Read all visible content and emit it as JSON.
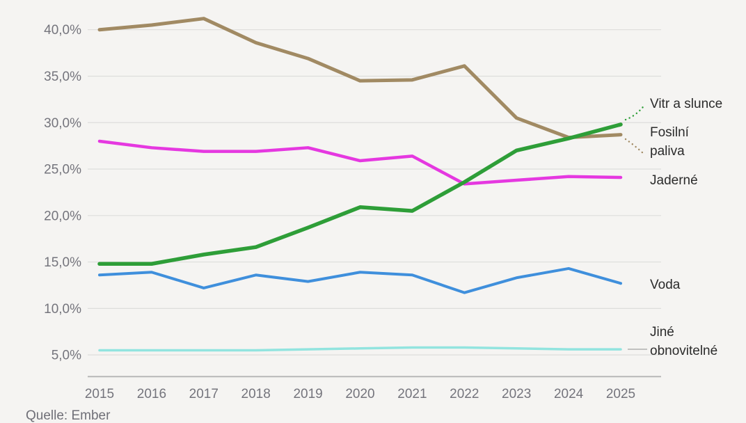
{
  "chart_data": {
    "type": "line",
    "title": "",
    "xlabel": "",
    "ylabel": "",
    "grid": true,
    "legend_position": "right-inline-labels",
    "y_tick_format": "percent-comma-decimal",
    "ylim": [
      2.6,
      43.2
    ],
    "x": [
      2015,
      2016,
      2017,
      2018,
      2019,
      2020,
      2021,
      2022,
      2023,
      2024,
      2025
    ],
    "x_labels": [
      "2015",
      "2016",
      "2017",
      "2018",
      "2019",
      "2020",
      "2021",
      "2022",
      "2023",
      "2024",
      "2025"
    ],
    "y_ticks": [
      {
        "value": 40,
        "label": "40,0%"
      },
      {
        "value": 35,
        "label": "35,0%"
      },
      {
        "value": 30,
        "label": "30,0%"
      },
      {
        "value": 25,
        "label": "25,0%"
      },
      {
        "value": 20,
        "label": "20,0%"
      },
      {
        "value": 15,
        "label": "15,0%"
      },
      {
        "value": 10,
        "label": "10,0%"
      },
      {
        "value": 5,
        "label": "5,0%"
      }
    ],
    "series": [
      {
        "name": "Vitr a slunce",
        "label_lines": [
          "Vitr a slunce"
        ],
        "color": "#2e9e38",
        "values": [
          14.8,
          14.8,
          15.8,
          16.6,
          18.7,
          20.9,
          20.5,
          23.6,
          27.0,
          28.3,
          29.8
        ]
      },
      {
        "name": "Fosilní paliva",
        "label_lines": [
          "Fosilní",
          "paliva"
        ],
        "color": "#a18a63",
        "values": [
          40.0,
          40.5,
          41.2,
          38.6,
          36.9,
          34.5,
          34.6,
          36.1,
          30.5,
          28.4,
          28.7
        ]
      },
      {
        "name": "Jaderné",
        "label_lines": [
          "Jaderné"
        ],
        "color": "#e538e0",
        "values": [
          28.0,
          27.3,
          26.9,
          26.9,
          27.3,
          25.9,
          26.4,
          23.4,
          23.8,
          24.2,
          24.1
        ]
      },
      {
        "name": "Voda",
        "label_lines": [
          "Voda"
        ],
        "color": "#3f8fdc",
        "values": [
          13.6,
          13.9,
          12.2,
          13.6,
          12.9,
          13.9,
          13.6,
          11.7,
          13.3,
          14.3,
          12.7
        ]
      },
      {
        "name": "Jiné obnovitelné",
        "label_lines": [
          "Jiné",
          "obnovitelné"
        ],
        "color": "#92e4df",
        "values": [
          5.5,
          5.5,
          5.5,
          5.5,
          5.6,
          5.7,
          5.8,
          5.8,
          5.7,
          5.6,
          5.6
        ]
      }
    ],
    "source": "Quelle: Ember"
  },
  "theme": {
    "background": "#f5f4f2",
    "gridline_color": "#dddddb",
    "axis_line_color": "#b4b4b4",
    "tick_label_color": "#74747c",
    "series_label_color": "#2b2b2b",
    "leader_line_gray": "#b0b0b0"
  }
}
